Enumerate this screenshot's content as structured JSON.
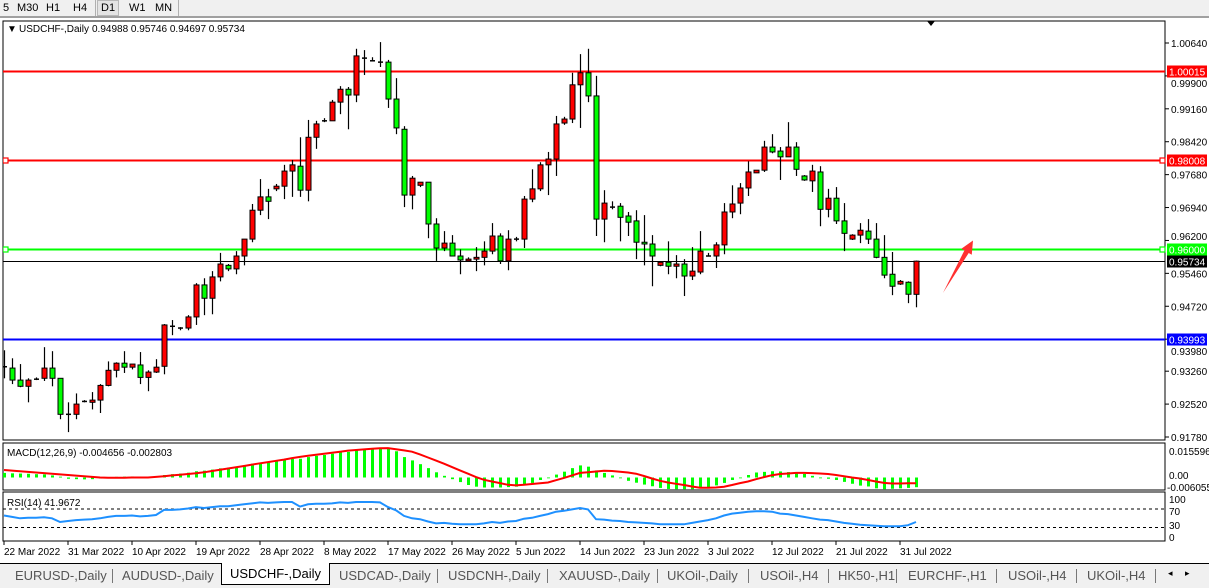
{
  "toolbar": {
    "timeframes": [
      {
        "label": "5",
        "active": false
      },
      {
        "label": "M30",
        "active": false
      },
      {
        "label": "H1",
        "active": false
      },
      {
        "label": "H4",
        "active": false
      },
      {
        "label": "D1",
        "active": true
      },
      {
        "label": "W1",
        "active": false
      },
      {
        "label": "MN",
        "active": false
      }
    ]
  },
  "chart": {
    "symbol_label": "USDCHF-,Daily",
    "ohlc_label": "0.94988 0.95746 0.94697 0.95734",
    "colors": {
      "bull": "#ff0000",
      "bear": "#00ff00",
      "doji": "#000000",
      "macd_hist": "#00ff00",
      "macd_signal": "#ff0000",
      "rsi": "#1e90ff"
    },
    "price_ticks": [
      "1.00640",
      "0.99900",
      "0.99160",
      "0.98420",
      "0.97680",
      "0.96940",
      "0.96200",
      "0.95460",
      "0.94720",
      "0.93980",
      "0.93260",
      "0.92520",
      "0.91780"
    ],
    "hlines": [
      {
        "price": 1.00015,
        "label": "1.00015",
        "color": "#ff0000",
        "handles": false
      },
      {
        "price": 0.98008,
        "label": "0.98008",
        "color": "#ff0000",
        "handles": true
      },
      {
        "price": 0.96,
        "label": "0.96000",
        "color": "#00ff00",
        "handles": true
      },
      {
        "price": 0.93993,
        "label": "0.93993",
        "color": "#0000ff",
        "handles": false
      }
    ],
    "bid": {
      "price": 0.95734,
      "label": "0.95734",
      "color": "#000000"
    },
    "arrow": {
      "color": "#ff3030",
      "from_price": 0.9502,
      "to_price": 0.962
    },
    "date_labels": [
      "22 Mar 2022",
      "31 Mar 2022",
      "10 Apr 2022",
      "19 Apr 2022",
      "28 Apr 2022",
      "8 May 2022",
      "17 May 2022",
      "26 May 2022",
      "5 Jun 2022",
      "14 Jun 2022",
      "23 Jun 2022",
      "3 Jul 2022",
      "12 Jul 2022",
      "21 Jul 2022",
      "31 Jul 2022"
    ],
    "macd": {
      "label": "MACD(12,26,9) -0.004656 -0.002803",
      "axis_labels": [
        "0.015596",
        "0.00",
        "-0.006055"
      ],
      "range": [
        -0.006055,
        0.015596
      ]
    },
    "rsi": {
      "label": "RSI(14) 41.9672",
      "axis_labels": [
        "100",
        "70",
        "30",
        "0"
      ],
      "levels": [
        70,
        30
      ]
    }
  },
  "chart_data": {
    "type": "candlestick",
    "symbol": "USDCHF-",
    "timeframe": "Daily",
    "ylim": [
      0.9178,
      1.0064
    ],
    "candles_ohlc": [
      [
        0.9336,
        0.9373,
        0.931,
        0.9333
      ],
      [
        0.9333,
        0.9355,
        0.9297,
        0.9306
      ],
      [
        0.9306,
        0.9342,
        0.929,
        0.9292
      ],
      [
        0.9292,
        0.931,
        0.9256,
        0.9306
      ],
      [
        0.9308,
        0.9312,
        0.9306,
        0.931
      ],
      [
        0.931,
        0.938,
        0.9304,
        0.9333
      ],
      [
        0.9333,
        0.9371,
        0.9292,
        0.931
      ],
      [
        0.931,
        0.931,
        0.9218,
        0.9229
      ],
      [
        0.9229,
        0.9256,
        0.9189,
        0.923
      ],
      [
        0.9229,
        0.9276,
        0.9218,
        0.9252
      ],
      [
        0.9258,
        0.9261,
        0.9256,
        0.9259
      ],
      [
        0.9256,
        0.9279,
        0.924,
        0.9261
      ],
      [
        0.9261,
        0.9297,
        0.9232,
        0.9294
      ],
      [
        0.9294,
        0.9348,
        0.9292,
        0.9328
      ],
      [
        0.9328,
        0.9346,
        0.9312,
        0.9344
      ],
      [
        0.9344,
        0.9371,
        0.9322,
        0.9335
      ],
      [
        0.9335,
        0.9342,
        0.933,
        0.9342
      ],
      [
        0.934,
        0.9369,
        0.9297,
        0.9312
      ],
      [
        0.9312,
        0.9328,
        0.9281,
        0.9324
      ],
      [
        0.9324,
        0.9353,
        0.9322,
        0.9335
      ],
      [
        0.9337,
        0.9432,
        0.9319,
        0.943
      ],
      [
        0.9427,
        0.9441,
        0.9407,
        0.9428
      ],
      [
        0.9423,
        0.9425,
        0.9418,
        0.9424
      ],
      [
        0.9423,
        0.9452,
        0.9418,
        0.9448
      ],
      [
        0.9448,
        0.9524,
        0.943,
        0.952
      ],
      [
        0.952,
        0.9535,
        0.9452,
        0.949
      ],
      [
        0.949,
        0.9551,
        0.9454,
        0.9538
      ],
      [
        0.9538,
        0.9592,
        0.9528,
        0.9567
      ],
      [
        0.9564,
        0.9567,
        0.9551,
        0.9556
      ],
      [
        0.9556,
        0.9596,
        0.9544,
        0.9585
      ],
      [
        0.9585,
        0.9623,
        0.9564,
        0.9623
      ],
      [
        0.9623,
        0.9702,
        0.9616,
        0.9688
      ],
      [
        0.9688,
        0.9758,
        0.9677,
        0.9718
      ],
      [
        0.9718,
        0.9736,
        0.9668,
        0.9708
      ],
      [
        0.9736,
        0.9747,
        0.9731,
        0.9742
      ],
      [
        0.9742,
        0.979,
        0.9713,
        0.9776
      ],
      [
        0.9776,
        0.9801,
        0.9718,
        0.979
      ],
      [
        0.9787,
        0.9852,
        0.9718,
        0.9733
      ],
      [
        0.9733,
        0.9891,
        0.9708,
        0.9852
      ],
      [
        0.9852,
        0.9889,
        0.9826,
        0.9882
      ],
      [
        0.9889,
        0.9895,
        0.9886,
        0.9888
      ],
      [
        0.9889,
        0.9936,
        0.9889,
        0.9931
      ],
      [
        0.9931,
        0.9967,
        0.9904,
        0.996
      ],
      [
        0.996,
        0.9965,
        0.987,
        0.9947
      ],
      [
        0.9947,
        1.0051,
        0.9931,
        1.0035
      ],
      [
        1.003,
        1.0048,
        0.9992,
        1.0031
      ],
      [
        1.0024,
        1.0032,
        1.0024,
        1.0023
      ],
      [
        1.0021,
        1.0066,
        1.001,
        1.0022
      ],
      [
        1.0021,
        1.0026,
        0.9918,
        0.9938
      ],
      [
        0.9938,
        0.9985,
        0.9859,
        0.9873
      ],
      [
        0.987,
        0.9877,
        0.9695,
        0.9722
      ],
      [
        0.9722,
        0.9765,
        0.969,
        0.976
      ],
      [
        0.9744,
        0.9751,
        0.974,
        0.9751
      ],
      [
        0.9751,
        0.9751,
        0.9625,
        0.9657
      ],
      [
        0.9657,
        0.967,
        0.9574,
        0.9603
      ],
      [
        0.9603,
        0.9641,
        0.9596,
        0.9614
      ],
      [
        0.9614,
        0.9632,
        0.9585,
        0.9585
      ],
      [
        0.9585,
        0.96,
        0.9544,
        0.9576
      ],
      [
        0.9574,
        0.9582,
        0.9574,
        0.9578
      ],
      [
        0.9578,
        0.9605,
        0.9551,
        0.9582
      ],
      [
        0.9582,
        0.9618,
        0.9564,
        0.9596
      ],
      [
        0.9596,
        0.9659,
        0.9589,
        0.963
      ],
      [
        0.963,
        0.9636,
        0.9567,
        0.9574
      ],
      [
        0.9574,
        0.9643,
        0.9553,
        0.9623
      ],
      [
        0.9623,
        0.9628,
        0.9618,
        0.9622
      ],
      [
        0.9623,
        0.972,
        0.9603,
        0.9713
      ],
      [
        0.9713,
        0.978,
        0.9706,
        0.9736
      ],
      [
        0.9736,
        0.9796,
        0.9731,
        0.979
      ],
      [
        0.979,
        0.9819,
        0.9722,
        0.9803
      ],
      [
        0.9803,
        0.99,
        0.9765,
        0.9882
      ],
      [
        0.9884,
        0.9898,
        0.988,
        0.9893
      ],
      [
        0.9893,
        0.9997,
        0.9884,
        0.997
      ],
      [
        0.997,
        1.0039,
        0.9873,
        0.9997
      ],
      [
        0.9997,
        1.0051,
        0.9931,
        0.9945
      ],
      [
        0.9945,
        0.999,
        0.963,
        0.9668
      ],
      [
        0.9668,
        0.9733,
        0.9616,
        0.9704
      ],
      [
        0.9695,
        0.9708,
        0.969,
        0.9696
      ],
      [
        0.9697,
        0.9704,
        0.9618,
        0.9672
      ],
      [
        0.9675,
        0.9684,
        0.963,
        0.9661
      ],
      [
        0.9664,
        0.9688,
        0.9578,
        0.9616
      ],
      [
        0.9616,
        0.9677,
        0.9564,
        0.9612
      ],
      [
        0.9612,
        0.9632,
        0.9517,
        0.9585
      ],
      [
        0.9564,
        0.9571,
        0.9562,
        0.9571
      ],
      [
        0.9571,
        0.9618,
        0.9544,
        0.9562
      ],
      [
        0.9562,
        0.9587,
        0.9535,
        0.9567
      ],
      [
        0.9567,
        0.9578,
        0.9495,
        0.954
      ],
      [
        0.954,
        0.9605,
        0.9531,
        0.9551
      ],
      [
        0.9549,
        0.9641,
        0.9544,
        0.9596
      ],
      [
        0.9585,
        0.9592,
        0.9585,
        0.9587
      ],
      [
        0.9585,
        0.9616,
        0.9558,
        0.961
      ],
      [
        0.961,
        0.9704,
        0.9589,
        0.9684
      ],
      [
        0.9684,
        0.9744,
        0.967,
        0.9702
      ],
      [
        0.9704,
        0.9749,
        0.9679,
        0.9738
      ],
      [
        0.9738,
        0.9798,
        0.972,
        0.9774
      ],
      [
        0.9772,
        0.9778,
        0.9772,
        0.9778
      ],
      [
        0.9778,
        0.9844,
        0.9774,
        0.983
      ],
      [
        0.983,
        0.9859,
        0.9816,
        0.9819
      ],
      [
        0.9821,
        0.983,
        0.9756,
        0.9808
      ],
      [
        0.9808,
        0.9886,
        0.9808,
        0.983
      ],
      [
        0.983,
        0.9841,
        0.9765,
        0.978
      ],
      [
        0.9765,
        0.9767,
        0.9754,
        0.9756
      ],
      [
        0.9754,
        0.979,
        0.9729,
        0.9776
      ],
      [
        0.9774,
        0.9787,
        0.9652,
        0.969
      ],
      [
        0.969,
        0.9736,
        0.9672,
        0.9715
      ],
      [
        0.9715,
        0.974,
        0.9657,
        0.9664
      ],
      [
        0.9664,
        0.9704,
        0.9596,
        0.9636
      ],
      [
        0.9623,
        0.9634,
        0.9621,
        0.9632
      ],
      [
        0.9632,
        0.9659,
        0.9614,
        0.9643
      ],
      [
        0.9641,
        0.9668,
        0.9612,
        0.9623
      ],
      [
        0.9623,
        0.9659,
        0.958,
        0.9582
      ],
      [
        0.9582,
        0.9632,
        0.9535,
        0.9542
      ],
      [
        0.9544,
        0.9594,
        0.9497,
        0.9517
      ],
      [
        0.9522,
        0.9531,
        0.952,
        0.9528
      ],
      [
        0.9526,
        0.9528,
        0.9479,
        0.9499
      ],
      [
        0.94988,
        0.95746,
        0.94697,
        0.95734
      ]
    ],
    "macd_main": [
      0.0022,
      0.002,
      0.0019,
      0.0018,
      0.0016,
      0.0015,
      0.001,
      0.0004,
      -0.0006,
      -0.0008,
      -0.0009,
      -0.0008,
      -0.0005,
      0.0,
      0.0003,
      0.0004,
      0.0005,
      0.0004,
      0.0004,
      0.0005,
      0.0012,
      0.0016,
      0.0019,
      0.0023,
      0.003,
      0.0033,
      0.0038,
      0.0044,
      0.0047,
      0.0052,
      0.0058,
      0.0066,
      0.0072,
      0.0075,
      0.0079,
      0.0084,
      0.0089,
      0.009,
      0.0098,
      0.0104,
      0.0108,
      0.0114,
      0.012,
      0.0123,
      0.0132,
      0.0138,
      0.014,
      0.0142,
      0.014,
      0.0126,
      0.0098,
      0.0082,
      0.0064,
      0.0045,
      0.0025,
      0.0008,
      -0.0008,
      -0.0022,
      -0.0036,
      -0.0044,
      -0.0048,
      -0.0048,
      -0.0048,
      -0.0046,
      -0.0044,
      -0.0032,
      -0.0026,
      -0.0012,
      -0.0003,
      0.0014,
      0.0028,
      0.0045,
      0.0058,
      0.0052,
      0.0034,
      0.0022,
      0.001,
      -0.0003,
      -0.0016,
      -0.0025,
      -0.0034,
      -0.0042,
      -0.005,
      -0.0055,
      -0.0056,
      -0.0056,
      -0.0056,
      -0.0052,
      -0.0046,
      -0.0038,
      -0.0026,
      -0.0012,
      -0.0003,
      0.0012,
      0.0024,
      0.0027,
      0.003,
      0.0029,
      0.0026,
      0.0022,
      0.0017,
      0.0008,
      -0.0002,
      -0.0006,
      -0.0012,
      -0.0021,
      -0.003,
      -0.0039,
      -0.0043,
      -0.0052,
      -0.0056,
      -0.0054,
      -0.0052,
      -0.005,
      -0.004656
    ],
    "macd_signal": [
      0.0036,
      0.0033,
      0.003,
      0.0027,
      0.0024,
      0.0021,
      0.0018,
      0.0015,
      0.0012,
      0.0009,
      0.0006,
      0.0003,
      0.0,
      -0.0001,
      -0.0001,
      -0.0001,
      0.0,
      0.0,
      0.0,
      0.0003,
      0.0006,
      0.001,
      0.0013,
      0.0017,
      0.002,
      0.0025,
      0.0031,
      0.0037,
      0.0043,
      0.0049,
      0.0055,
      0.0062,
      0.0068,
      0.0074,
      0.008,
      0.0086,
      0.0093,
      0.0099,
      0.0104,
      0.0109,
      0.0114,
      0.0119,
      0.0124,
      0.0129,
      0.0132,
      0.0135,
      0.0138,
      0.014,
      0.0141,
      0.0136,
      0.013,
      0.0124,
      0.0111,
      0.0096,
      0.0081,
      0.0066,
      0.005,
      0.0034,
      0.0018,
      0.0002,
      -0.0011,
      -0.0019,
      -0.0027,
      -0.0035,
      -0.0038,
      -0.0035,
      -0.0031,
      -0.0028,
      -0.0024,
      -0.0013,
      -0.0002,
      0.001,
      0.0022,
      0.0025,
      0.0029,
      0.0032,
      0.0031,
      0.0028,
      0.0024,
      0.0018,
      0.0007,
      -0.0005,
      -0.0016,
      -0.0024,
      -0.003,
      -0.0036,
      -0.0043,
      -0.0049,
      -0.0049,
      -0.0048,
      -0.0044,
      -0.0036,
      -0.0027,
      -0.0019,
      -0.0008,
      0.0002,
      0.0011,
      0.0017,
      0.0019,
      0.0022,
      0.0022,
      0.0021,
      0.0019,
      0.0017,
      0.0012,
      0.0006,
      0.0,
      -0.0005,
      -0.0012,
      -0.0019,
      -0.0026,
      -0.0029,
      -0.0029,
      -0.0028,
      -0.002803
    ],
    "rsi": [
      56,
      53,
      50,
      51,
      51,
      52,
      50,
      42,
      44,
      46,
      47,
      48,
      50,
      53,
      55,
      55,
      56,
      54,
      55,
      57,
      68,
      68,
      69,
      71,
      74,
      72,
      74,
      76,
      76,
      78,
      80,
      82,
      84,
      83,
      84,
      85,
      85,
      75,
      80,
      81,
      81,
      82,
      84,
      83,
      85,
      85,
      85,
      84,
      74,
      67,
      55,
      50,
      48,
      43,
      39,
      40,
      38,
      37,
      37,
      37,
      39,
      42,
      40,
      43,
      44,
      49,
      51,
      55,
      59,
      64,
      66,
      69,
      72,
      69,
      48,
      47,
      45,
      44,
      42,
      41,
      40,
      39,
      37,
      37,
      37,
      37,
      40,
      43,
      46,
      50,
      56,
      60,
      62,
      64,
      65,
      65,
      64,
      60,
      59,
      56,
      53,
      50,
      47,
      46,
      43,
      40,
      38,
      36,
      35,
      34,
      33,
      33,
      33,
      35,
      41.9672
    ]
  },
  "tabs": {
    "items": [
      {
        "label": "EURUSD-,Daily",
        "active": false
      },
      {
        "label": "AUDUSD-,Daily",
        "active": false
      },
      {
        "label": "USDCHF-,Daily",
        "active": true
      },
      {
        "label": "USDCAD-,Daily",
        "active": false
      },
      {
        "label": "USDCNH-,Daily",
        "active": false
      },
      {
        "label": "XAUUSD-,Daily",
        "active": false
      },
      {
        "label": "UKOil-,Daily",
        "active": false
      },
      {
        "label": "USOil-,H4",
        "active": false
      },
      {
        "label": "HK50-,H1",
        "active": false
      },
      {
        "label": "EURCHF-,H1",
        "active": false
      },
      {
        "label": "USOil-,H4",
        "active": false
      },
      {
        "label": "UKOil-,H4",
        "active": false
      }
    ],
    "scroll_left": "◂",
    "scroll_right": "▸"
  }
}
